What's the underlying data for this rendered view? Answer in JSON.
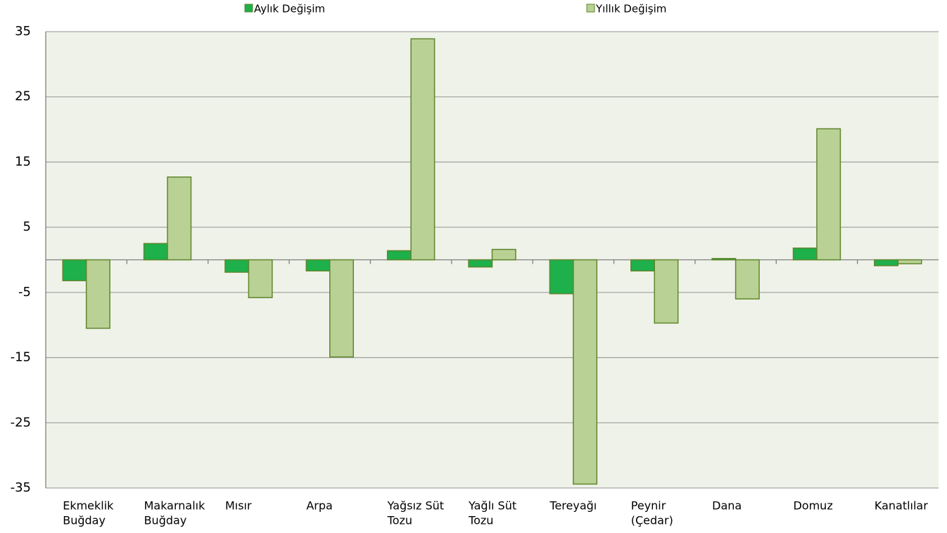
{
  "chart_data": {
    "type": "bar",
    "categories": [
      [
        "Ekmeklik",
        "Buğday"
      ],
      [
        "Makarnalık",
        "Buğday"
      ],
      [
        "Mısır"
      ],
      [
        "Arpa"
      ],
      [
        "Yağsız Süt",
        "Tozu"
      ],
      [
        "Yağlı Süt",
        "Tozu"
      ],
      [
        "Tereyağı"
      ],
      [
        "Peynir",
        "(Çedar)"
      ],
      [
        "Dana"
      ],
      [
        "Domuz"
      ],
      [
        "Kanatlılar"
      ]
    ],
    "series": [
      {
        "name": "Aylık Değişim",
        "color": "#1db04b",
        "values": [
          -3.2,
          2.5,
          -1.9,
          -1.7,
          1.4,
          -1.1,
          -5.2,
          -1.7,
          0.2,
          1.8,
          -0.9
        ]
      },
      {
        "name": "Yıllık Değişim",
        "color": "#bad195",
        "values": [
          -10.5,
          12.7,
          -5.8,
          -14.9,
          33.9,
          1.6,
          -34.4,
          -9.7,
          -6.0,
          20.1,
          -0.6
        ]
      }
    ],
    "ylim": [
      -35,
      35
    ],
    "yticks": [
      -35,
      -25,
      -15,
      -5,
      5,
      15,
      25,
      35
    ],
    "grid": true,
    "legend": "top"
  }
}
